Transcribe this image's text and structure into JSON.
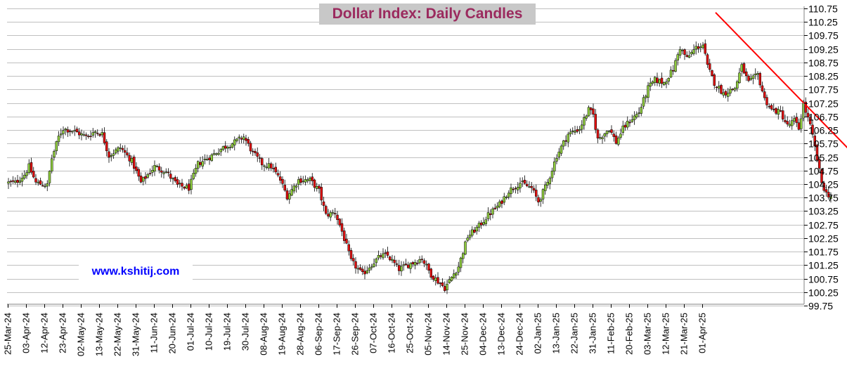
{
  "chart_data": {
    "type": "candlestick",
    "title": "Dollar Index: Daily Candles",
    "watermark": "www.kshitij.com",
    "y_axis_position": "right",
    "ylim": [
      99.75,
      110.75
    ],
    "y_ticks": [
      "110.75",
      "110.25",
      "109.75",
      "109.25",
      "108.75",
      "108.25",
      "107.75",
      "107.25",
      "106.75",
      "106.25",
      "105.75",
      "105.25",
      "104.75",
      "104.25",
      "103.75",
      "103.25",
      "102.75",
      "102.25",
      "101.75",
      "101.25",
      "100.75",
      "100.25",
      "99.75"
    ],
    "x_ticks": [
      "25-Mar-24",
      "03-Apr-24",
      "12-Apr-24",
      "23-Apr-24",
      "02-May-24",
      "13-May-24",
      "22-May-24",
      "31-May-24",
      "11-Jun-24",
      "20-Jun-24",
      "01-Jul-24",
      "10-Jul-24",
      "19-Jul-24",
      "30-Jul-24",
      "08-Aug-24",
      "19-Aug-24",
      "28-Aug-24",
      "06-Sep-24",
      "17-Sep-24",
      "26-Sep-24",
      "07-Oct-24",
      "16-Oct-24",
      "25-Oct-24",
      "05-Nov-24",
      "14-Nov-24",
      "25-Nov-24",
      "04-Dec-24",
      "13-Dec-24",
      "24-Dec-24",
      "02-Jan-25",
      "13-Jan-25",
      "22-Jan-25",
      "31-Jan-25",
      "11-Feb-25",
      "20-Feb-25",
      "03-Mar-25",
      "12-Mar-25",
      "21-Mar-25",
      "01-Apr-25"
    ],
    "grid": true,
    "colors": {
      "up": "#8fcc3e",
      "down": "#e01010",
      "trendline": "#ff0000",
      "grid": "#c0c0c0",
      "title": "#9b2a5e",
      "title_bg": "#c8c8c8",
      "watermark": "#0000ff"
    },
    "trendline": {
      "from": {
        "bar": 310,
        "y": 110.6
      },
      "to": {
        "bar": 378,
        "y": 104.7
      }
    },
    "close_path": [
      [
        0,
        104.3
      ],
      [
        3,
        104.3
      ],
      [
        7,
        104.6
      ],
      [
        9,
        104.9
      ],
      [
        12,
        104.3
      ],
      [
        17,
        104.2
      ],
      [
        19,
        105.2
      ],
      [
        22,
        106.0
      ],
      [
        24,
        106.3
      ],
      [
        29,
        106.2
      ],
      [
        34,
        106.0
      ],
      [
        38,
        106.2
      ],
      [
        41,
        106.1
      ],
      [
        44,
        105.3
      ],
      [
        49,
        105.6
      ],
      [
        54,
        105.1
      ],
      [
        58,
        104.3
      ],
      [
        61,
        104.6
      ],
      [
        64,
        104.9
      ],
      [
        69,
        104.7
      ],
      [
        74,
        104.2
      ],
      [
        79,
        104.1
      ],
      [
        83,
        105.0
      ],
      [
        89,
        105.3
      ],
      [
        94,
        105.6
      ],
      [
        99,
        105.8
      ],
      [
        103,
        106.0
      ],
      [
        107,
        105.4
      ],
      [
        111,
        105.0
      ],
      [
        115,
        104.9
      ],
      [
        119,
        104.4
      ],
      [
        122,
        103.8
      ],
      [
        127,
        104.4
      ],
      [
        132,
        104.4
      ],
      [
        136,
        104.0
      ],
      [
        139,
        103.1
      ],
      [
        143,
        103.2
      ],
      [
        146,
        102.5
      ],
      [
        150,
        101.4
      ],
      [
        155,
        100.9
      ],
      [
        158,
        101.2
      ],
      [
        163,
        101.6
      ],
      [
        166,
        101.6
      ],
      [
        171,
        101.1
      ],
      [
        176,
        101.3
      ],
      [
        181,
        101.5
      ],
      [
        185,
        100.9
      ],
      [
        191,
        100.4
      ],
      [
        194,
        100.8
      ],
      [
        197,
        101.2
      ],
      [
        201,
        102.3
      ],
      [
        206,
        102.7
      ],
      [
        210,
        103.1
      ],
      [
        215,
        103.5
      ],
      [
        219,
        104.0
      ],
      [
        224,
        104.3
      ],
      [
        229,
        104.1
      ],
      [
        232,
        103.6
      ],
      [
        236,
        104.3
      ],
      [
        240,
        105.3
      ],
      [
        245,
        106.1
      ],
      [
        250,
        106.3
      ],
      [
        254,
        107.0
      ],
      [
        256,
        106.8
      ],
      [
        258,
        105.9
      ],
      [
        263,
        106.3
      ],
      [
        266,
        105.8
      ],
      [
        269,
        106.3
      ],
      [
        272,
        106.6
      ],
      [
        276,
        106.9
      ],
      [
        280,
        107.8
      ],
      [
        283,
        108.1
      ],
      [
        287,
        108.0
      ],
      [
        291,
        108.5
      ],
      [
        294,
        109.3
      ],
      [
        297,
        108.9
      ],
      [
        301,
        109.3
      ],
      [
        304,
        109.4
      ],
      [
        306,
        108.6
      ],
      [
        309,
        108.0
      ],
      [
        313,
        107.6
      ],
      [
        318,
        107.8
      ],
      [
        321,
        108.6
      ],
      [
        324,
        108.0
      ],
      [
        328,
        108.3
      ],
      [
        331,
        107.4
      ],
      [
        334,
        107.0
      ],
      [
        338,
        106.9
      ],
      [
        341,
        106.4
      ],
      [
        344,
        106.6
      ],
      [
        346,
        106.3
      ],
      [
        348,
        107.2
      ],
      [
        351,
        106.4
      ],
      [
        353,
        105.6
      ],
      [
        356,
        104.3
      ],
      [
        358,
        103.9
      ],
      [
        360,
        103.8
      ]
    ]
  }
}
